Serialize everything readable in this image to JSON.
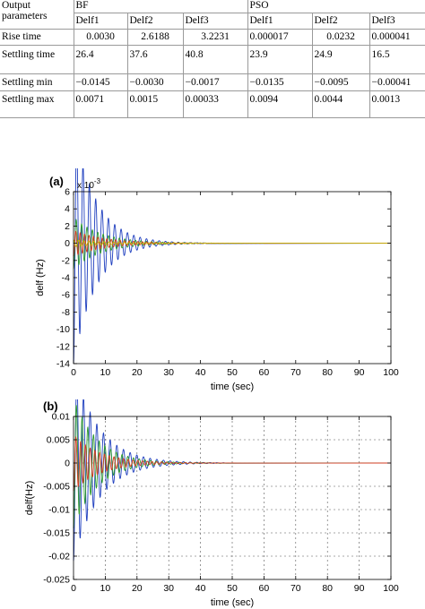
{
  "table": {
    "header": {
      "row_label": "Output parameters",
      "group_bf": "BF",
      "group_pso": "PSO",
      "columns": [
        "Delf1",
        "Delf2",
        "Delf3",
        "Delf1",
        "Delf2",
        "Delf3"
      ]
    },
    "rows": [
      {
        "label": "Rise time",
        "values": [
          "0.0030",
          "2.6188",
          "3.2231",
          "0.000017",
          "0.0232",
          "0.000041"
        ]
      },
      {
        "label": "Settling time",
        "values": [
          "26.4",
          "37.6",
          "40.8",
          "23.9",
          "24.9",
          "16.5"
        ]
      },
      {
        "label": "Settling min",
        "values": [
          "−0.0145",
          "−0.0030",
          "−0.0017",
          "−0.0135",
          "−0.0095",
          "−0.00041"
        ]
      },
      {
        "label": "Settling max",
        "values": [
          "0.0071",
          "0.0015",
          "0.00033",
          "0.0094",
          "0.0044",
          "0.0013"
        ]
      }
    ]
  },
  "chart_data": [
    {
      "type": "line",
      "panel_label": "(a)",
      "exponent_label": "x 10",
      "exponent_power": "-3",
      "xlabel": "time (sec)",
      "ylabel": "delf (Hz)",
      "xlim": [
        0,
        100
      ],
      "ylim": [
        -14,
        6
      ],
      "xticks": [
        "0",
        "10",
        "20",
        "30",
        "40",
        "50",
        "60",
        "70",
        "80",
        "90",
        "100"
      ],
      "yticks": [
        "6",
        "4",
        "2",
        "0",
        "-2",
        "-4",
        "-6",
        "-8",
        "-10",
        "-12",
        "-14"
      ],
      "grid": false,
      "series": [
        {
          "color": "#1f3fbf",
          "amplitude": -14,
          "period": 2.0,
          "decay": 7.0
        },
        {
          "color": "#2e9a2e",
          "amplitude": -3.0,
          "period": 1.7,
          "decay": 9.0
        },
        {
          "color": "#d43a1f",
          "amplitude": -1.5,
          "period": 1.4,
          "decay": 10.0
        },
        {
          "color": "#c9b400",
          "amplitude": 0.4,
          "period": 1.6,
          "decay": 12.0
        }
      ]
    },
    {
      "type": "line",
      "panel_label": "(b)",
      "xlabel": "time (sec)",
      "ylabel": "delf(Hz)",
      "xlim": [
        0,
        100
      ],
      "ylim": [
        -0.025,
        0.01
      ],
      "xticks": [
        "0",
        "10",
        "20",
        "30",
        "40",
        "50",
        "60",
        "70",
        "80",
        "90",
        "100"
      ],
      "yticks": [
        "0.01",
        "0.005",
        "0",
        "-0.005",
        "-0.01",
        "-0.015",
        "-0.02",
        "-0.025"
      ],
      "grid": true,
      "series": [
        {
          "color": "#1f3fbf",
          "amplitude": -0.021,
          "period": 2.1,
          "decay": 8.0
        },
        {
          "color": "#2e9a2e",
          "amplitude": -0.014,
          "period": 1.8,
          "decay": 7.5
        },
        {
          "color": "#d43a1f",
          "amplitude": -0.006,
          "period": 1.5,
          "decay": 8.5
        }
      ]
    }
  ]
}
